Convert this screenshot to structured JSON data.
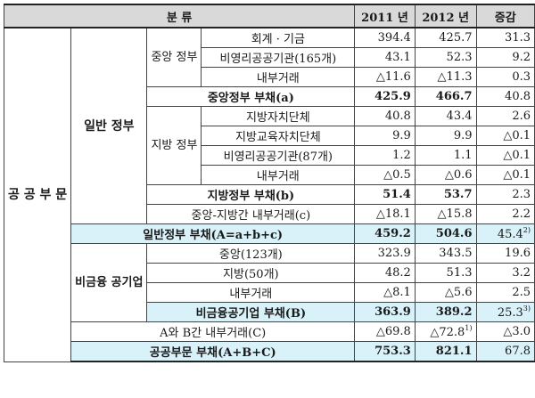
{
  "header": {
    "category": "분 류",
    "y2011": "2011 년",
    "y2012": "2012 년",
    "change": "증감"
  },
  "groups": {
    "public_sector": "공 공 부 문",
    "general_gov": "일반 정부",
    "central": "중앙 정부",
    "local": "지방 정부",
    "non_financial": "비금융 공기업"
  },
  "rows": {
    "c1": {
      "label": "회계 · 기금",
      "v2011": "394.4",
      "v2012": "425.7",
      "chg": "31.3"
    },
    "c2": {
      "label": "비영리공공기관(165개)",
      "v2011": "43.1",
      "v2012": "52.3",
      "chg": "9.2"
    },
    "c3": {
      "label": "내부거래",
      "v2011": "△11.6",
      "v2012": "△11.3",
      "chg": "0.3"
    },
    "ct": {
      "label": "중앙정부 부채(a)",
      "v2011": "425.9",
      "v2012": "466.7",
      "chg": "40.8"
    },
    "l1": {
      "label": "지방자치단체",
      "v2011": "40.8",
      "v2012": "43.4",
      "chg": "2.6"
    },
    "l2": {
      "label": "지방교육자치단체",
      "v2011": "9.9",
      "v2012": "9.9",
      "chg": "△0.1"
    },
    "l3": {
      "label": "비영리공공기관(87개)",
      "v2011": "1.2",
      "v2012": "1.1",
      "chg": "△0.1"
    },
    "l4": {
      "label": "내부거래",
      "v2011": "△0.5",
      "v2012": "△0.6",
      "chg": "△0.1"
    },
    "lt": {
      "label": "지방정부 부채(b)",
      "v2011": "51.4",
      "v2012": "53.7",
      "chg": "2.3"
    },
    "cl": {
      "label": "중앙-지방간 내부거래(c)",
      "v2011": "△18.1",
      "v2012": "△15.8",
      "chg": "2.2"
    },
    "gt": {
      "label": "일반정부 부채(A=a+b+c)",
      "v2011": "459.2",
      "v2012": "504.6",
      "chg": "45.4",
      "chg_note": "2)"
    },
    "n1": {
      "label": "중앙(123개)",
      "v2011": "323.9",
      "v2012": "343.5",
      "chg": "19.6"
    },
    "n2": {
      "label": "지방(50개)",
      "v2011": "48.2",
      "v2012": "51.3",
      "chg": "3.2"
    },
    "n3": {
      "label": "내부거래",
      "v2011": "△8.1",
      "v2012": "△5.6",
      "chg": "2.5"
    },
    "nt": {
      "label": "비금융공기업 부채(B)",
      "v2011": "363.9",
      "v2012": "389.2",
      "chg": "25.3",
      "chg_note": "3)"
    },
    "ab": {
      "label": "A와 B간 내부거래(C)",
      "v2011": "△69.8",
      "v2012": "△72.8",
      "v2012_note": "1)",
      "chg": "△3.0"
    },
    "tot": {
      "label": "공공부문 부채(A+B+C)",
      "v2011": "753.3",
      "v2012": "821.1",
      "chg": "67.8"
    }
  }
}
